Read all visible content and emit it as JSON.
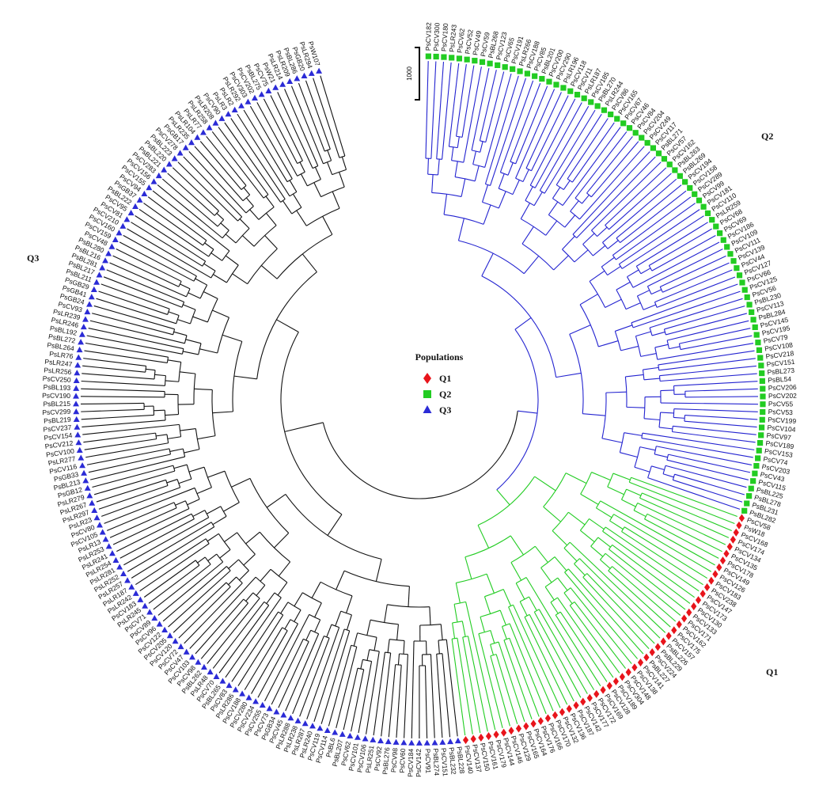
{
  "legend": {
    "title": "Populations",
    "items": [
      {
        "label": "Q1",
        "color": "#e8141b",
        "marker": "diamond"
      },
      {
        "label": "Q2",
        "color": "#22cc22",
        "marker": "square"
      },
      {
        "label": "Q3",
        "color": "#2b2bd6",
        "marker": "triangle"
      }
    ]
  },
  "scale_bar": {
    "label": "1000"
  },
  "groups": [
    {
      "name": "Q2",
      "color": "#22cc22",
      "branch_color": "#2323d0",
      "marker": "square",
      "leaves": [
        "PsCV182",
        "PsCV300",
        "PsCV180",
        "PsLR243",
        "PsCV62",
        "PsCV52",
        "PsCV49",
        "PsCV59",
        "PsBL268",
        "PsCV123",
        "PsCV65",
        "PsCV191",
        "PsLR266",
        "PsCV188",
        "PsCV85",
        "PsBL201",
        "PsCV200",
        "PsCV290",
        "PsLR196",
        "PsCV118",
        "PsCV11",
        "PsLR187",
        "PsCV185",
        "PsBL270",
        "PsLR244",
        "PsCV86",
        "PsCV165",
        "PsCV67",
        "PsCV46",
        "PsCV84",
        "PsCV204",
        "PsCV249",
        "PsCV117",
        "PsBL271",
        "PsCV57",
        "PsCV162",
        "PsBL263",
        "PsBL269",
        "PsCV194",
        "PsCV158",
        "PsCV289",
        "PsCV99",
        "PsCV181",
        "PsCV110",
        "PsLR259",
        "PsCV68",
        "PsCV69",
        "PsCV186",
        "PsCV109",
        "PsCV111",
        "PsCV139",
        "PsCV44",
        "PsCV127",
        "PsCV66",
        "PsCV125",
        "PsCV56",
        "PsBL230",
        "PsCV113",
        "PsBL284",
        "PsCV145",
        "PsCV195",
        "PsCV79",
        "PsCV108",
        "PsCV218",
        "PsCV151",
        "PsBL273",
        "PsBL54",
        "PsCV206",
        "PsCV202",
        "PsCV55",
        "PsCV53",
        "PsCV199",
        "PsCV104",
        "PsCV97",
        "PsCV189",
        "PsCV153",
        "PsCV74",
        "PsCV203",
        "PsCV43",
        "PsCV115",
        "PsBL225",
        "PsBL278",
        "PsBL231",
        "PsBL282"
      ]
    },
    {
      "name": "Q1",
      "color": "#e8141b",
      "branch_color": "#22cc22",
      "marker": "diamond",
      "leaves": [
        "PsCV58",
        "PsW18",
        "PsCV168",
        "PsCV174",
        "PsCV134",
        "PsCV135",
        "PsCV178",
        "PsCV149",
        "PsCV126",
        "PsCV183",
        "PsCV238",
        "PsCV147",
        "PsCV173",
        "PsCV130",
        "PsCV133",
        "PsCV171",
        "PsCV162",
        "PsCV175",
        "PsCV157",
        "PsBL226",
        "PsBL229",
        "PsCV224",
        "PsBL227",
        "PsCV141",
        "PsCV138",
        "PsCV148",
        "PsCV304",
        "PsCV189",
        "PsCV128",
        "PsCV169",
        "PsCV172",
        "PsCV177",
        "PsCV142",
        "PsCV187",
        "PsCV136",
        "PsCV132",
        "PsCV170",
        "PsCV166",
        "PsCV176",
        "PsCV164",
        "PsCV165",
        "PsCV129",
        "PsCV146",
        "PsCV144",
        "PsCV179",
        "PsCV161",
        "PsCV150",
        "PsCV137",
        "PsCV140"
      ]
    },
    {
      "name": "Q3",
      "color": "#2b2bd6",
      "branch_color": "#111111",
      "marker": "triangle",
      "leaves": [
        "PsBL228",
        "PsBL232",
        "PsCV151",
        "PsBL274",
        "PsCV91",
        "PsCV142",
        "PsCV184",
        "PsCV60",
        "PsCV98",
        "PsBL276",
        "PsCV92",
        "PsLR251",
        "PsCV106",
        "PsCV101",
        "PsCV62",
        "PsBL207",
        "PsBL6",
        "PsCV114",
        "PsCV119",
        "PsLR240",
        "PsLR287",
        "PsLR238",
        "PsLR288",
        "PsCV45",
        "PsGB34",
        "PsCV73",
        "PsCV255",
        "PsCV234",
        "PsCV280",
        "PsCV188",
        "PsLR286",
        "PsCV83",
        "PsBL265",
        "PsCV70",
        "PsLR48",
        "PsBL262",
        "PsCV98",
        "PsCV103",
        "PsCV47",
        "PsCV72",
        "PsCV120",
        "PsCV205",
        "PsCV122",
        "PsCV96",
        "PsCV89",
        "PsCV71",
        "PsLR245",
        "PsCV183",
        "PsLR242",
        "PsLR187",
        "PsLR257",
        "PsLR252",
        "PsLR281",
        "PsLR254",
        "PsLR241",
        "PsLR253",
        "PsLR13",
        "PsCV105",
        "PsCV80",
        "PsLR23",
        "PsLR297",
        "PsLR267",
        "PsLR279",
        "PsGB12",
        "PsBL213",
        "PsGB33",
        "PsCV116",
        "PsLR277",
        "PsCV100",
        "PsCV212",
        "PsCV154",
        "PsCV237",
        "PsBL219",
        "PsCV299",
        "PsBL215",
        "PsCV190",
        "PsBL193",
        "PsCV250",
        "PsLR256",
        "PsLR247",
        "PsLR76",
        "PsBL264",
        "PsBL272",
        "PsBL192",
        "PsLR246",
        "PsLR239",
        "PsCV93",
        "PsGB24",
        "PsGB41",
        "PsGB29",
        "PsBL211",
        "PsBL217",
        "PsBL281",
        "PsBL216",
        "PsBL280",
        "PsCV48",
        "PsCV159",
        "PsCV160",
        "PsCV210",
        "PsCV81",
        "PsCV95",
        "PsBL222",
        "PsGB37",
        "PsCV94",
        "PsCV155",
        "PsCV156",
        "PsCV283",
        "PsBL221",
        "PsBL220",
        "PsBL223",
        "PsCV278",
        "PsGB17",
        "PsLR235",
        "PsLR104",
        "PsLR77",
        "PsLR258",
        "PsLR208",
        "PsCV90",
        "PsLR3",
        "PsLR2",
        "PsLR292",
        "PsCV303",
        "PsCV202",
        "PsBL275",
        "PsCV75",
        "PsW21",
        "PsLR214",
        "PsLR209",
        "PsBL286",
        "PsGB20",
        "PsLR294",
        "PsW107"
      ]
    }
  ]
}
